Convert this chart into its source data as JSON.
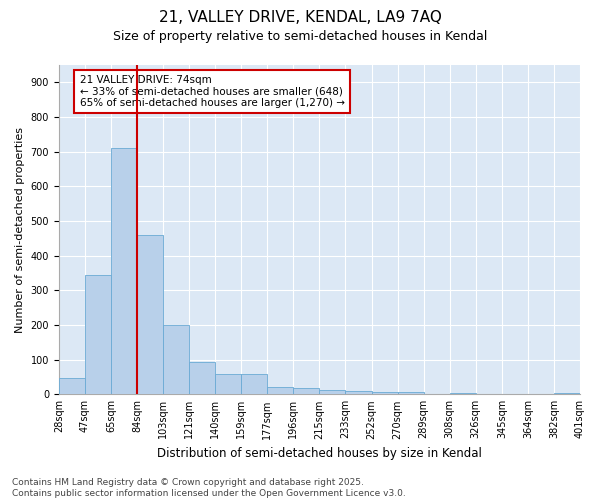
{
  "title": "21, VALLEY DRIVE, KENDAL, LA9 7AQ",
  "subtitle": "Size of property relative to semi-detached houses in Kendal",
  "xlabel": "Distribution of semi-detached houses by size in Kendal",
  "ylabel": "Number of semi-detached properties",
  "bin_labels": [
    "28sqm",
    "47sqm",
    "65sqm",
    "84sqm",
    "103sqm",
    "121sqm",
    "140sqm",
    "159sqm",
    "177sqm",
    "196sqm",
    "215sqm",
    "233sqm",
    "252sqm",
    "270sqm",
    "289sqm",
    "308sqm",
    "326sqm",
    "345sqm",
    "364sqm",
    "382sqm",
    "401sqm"
  ],
  "bar_values": [
    47,
    345,
    710,
    460,
    200,
    93,
    60,
    60,
    22,
    17,
    12,
    10,
    8,
    8,
    0,
    5,
    0,
    0,
    0,
    5
  ],
  "bar_color": "#b8d0ea",
  "bar_edge_color": "#6aaad4",
  "vline_color": "#cc0000",
  "ylim": [
    0,
    950
  ],
  "yticks": [
    0,
    100,
    200,
    300,
    400,
    500,
    600,
    700,
    800,
    900
  ],
  "annotation_text": "21 VALLEY DRIVE: 74sqm\n← 33% of semi-detached houses are smaller (648)\n65% of semi-detached houses are larger (1,270) →",
  "annotation_box_color": "#cc0000",
  "footer_text": "Contains HM Land Registry data © Crown copyright and database right 2025.\nContains public sector information licensed under the Open Government Licence v3.0.",
  "plot_bg_color": "#dce8f5",
  "title_fontsize": 11,
  "subtitle_fontsize": 9,
  "xlabel_fontsize": 8.5,
  "ylabel_fontsize": 8,
  "tick_fontsize": 7,
  "footer_fontsize": 6.5,
  "annot_fontsize": 7.5
}
